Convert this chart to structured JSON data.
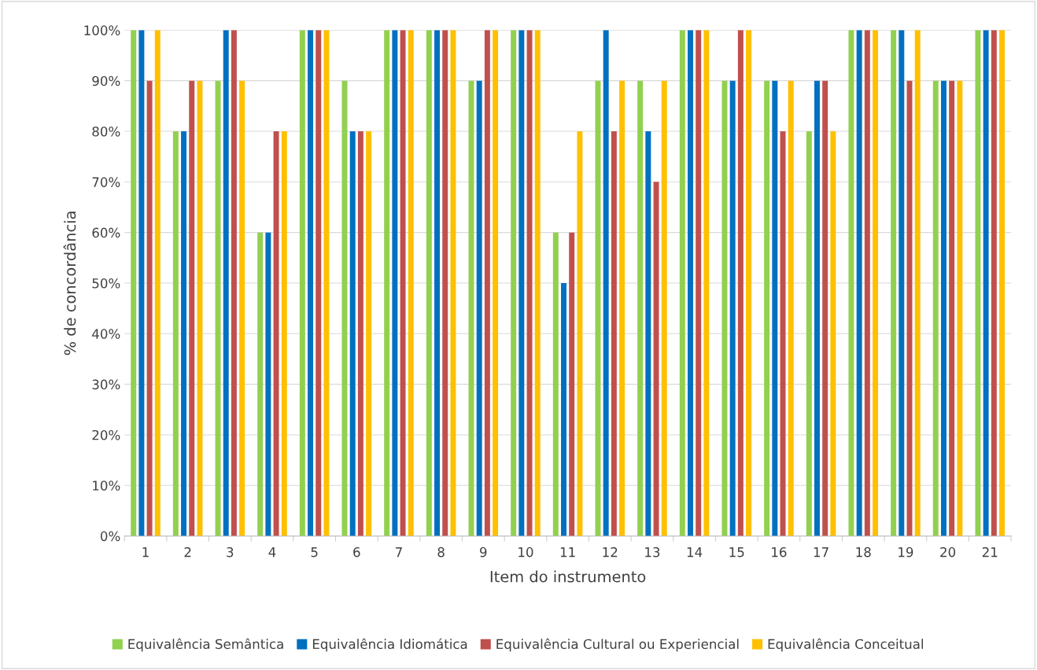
{
  "chart_data": {
    "type": "bar",
    "xlabel": "Item do instrumento",
    "ylabel": "% de concordância",
    "categories": [
      "1",
      "2",
      "3",
      "4",
      "5",
      "6",
      "7",
      "8",
      "9",
      "10",
      "11",
      "12",
      "13",
      "14",
      "15",
      "16",
      "17",
      "18",
      "19",
      "20",
      "21"
    ],
    "series": [
      {
        "name": "Equivalência Semântica",
        "color": "#92d050",
        "values": [
          100,
          80,
          90,
          60,
          100,
          90,
          100,
          100,
          90,
          100,
          60,
          90,
          90,
          100,
          90,
          90,
          80,
          100,
          100,
          90,
          100
        ]
      },
      {
        "name": "Equivalência Idiomática",
        "color": "#0070c0",
        "values": [
          100,
          80,
          100,
          60,
          100,
          80,
          100,
          100,
          90,
          100,
          50,
          100,
          80,
          100,
          90,
          90,
          90,
          100,
          100,
          90,
          100
        ]
      },
      {
        "name": "Equivalência Cultural ou Experiencial",
        "color": "#c0504d",
        "values": [
          90,
          90,
          100,
          80,
          100,
          80,
          100,
          100,
          100,
          100,
          60,
          80,
          70,
          100,
          100,
          80,
          90,
          100,
          90,
          90,
          100
        ]
      },
      {
        "name": "Equivalência Conceitual",
        "color": "#ffc000",
        "values": [
          100,
          90,
          90,
          80,
          100,
          80,
          100,
          100,
          100,
          100,
          80,
          90,
          90,
          100,
          100,
          90,
          80,
          100,
          100,
          90,
          100
        ]
      }
    ],
    "ylim": [
      0,
      100
    ],
    "yticks": [
      {
        "value": 0,
        "label": "0%"
      },
      {
        "value": 10,
        "label": "10%"
      },
      {
        "value": 20,
        "label": "20%"
      },
      {
        "value": 30,
        "label": "30%"
      },
      {
        "value": 40,
        "label": "40%"
      },
      {
        "value": 50,
        "label": "50%"
      },
      {
        "value": 60,
        "label": "60%"
      },
      {
        "value": 70,
        "label": "70%"
      },
      {
        "value": 80,
        "label": "80%"
      },
      {
        "value": 90,
        "label": "90%"
      },
      {
        "value": 100,
        "label": "100%"
      }
    ],
    "grid": "y",
    "legend": "bottom"
  }
}
